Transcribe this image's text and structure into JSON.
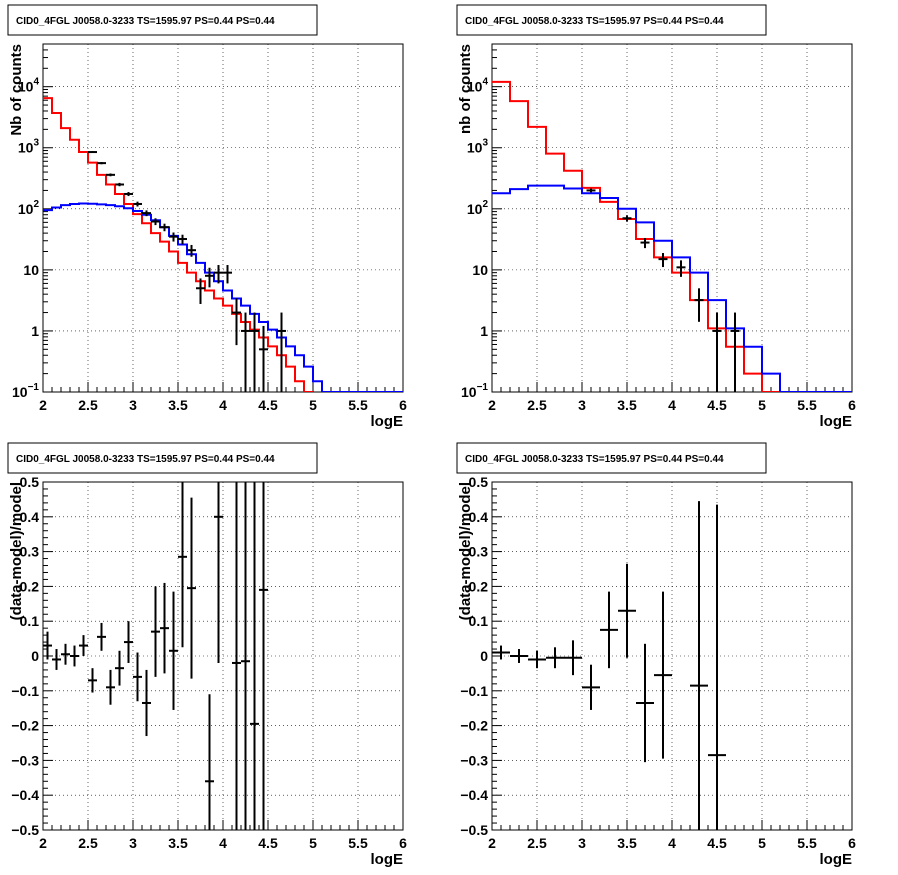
{
  "charts": [
    {
      "title": "CID0_4FGL J0058.0-3233 TS=1595.97 PS=0.44 PS=0.44",
      "type": "histogram",
      "xlabel": "logE",
      "ylabel": "Nb of counts",
      "xlim": [
        2,
        6
      ],
      "ylim": [
        0.1,
        50000
      ],
      "log_y": true,
      "grid": true,
      "x_ticks": [
        "2",
        "2.5",
        "3",
        "3.5",
        "4",
        "4.5",
        "5",
        "5.5",
        "6"
      ],
      "y_ticks": [
        {
          "v": 0.1,
          "base": "10",
          "exp": "−1"
        },
        {
          "v": 1,
          "label": "1"
        },
        {
          "v": 10,
          "label": "10"
        },
        {
          "v": 100,
          "base": "10",
          "exp": "2"
        },
        {
          "v": 1000,
          "base": "10",
          "exp": "3"
        },
        {
          "v": 10000,
          "base": "10",
          "exp": "4"
        }
      ],
      "series": [
        {
          "color": "#ff0000",
          "bin_width": 0.1,
          "x_start": 2.0,
          "values": [
            6500,
            3700,
            2100,
            1350,
            850,
            570,
            360,
            250,
            175,
            120,
            82,
            58,
            40,
            29,
            20,
            13,
            9,
            6.5,
            4.6,
            3.4,
            2.6,
            1.9,
            1.4,
            1.05,
            0.78,
            0.56,
            0.4,
            0.26,
            0.15,
            0.1
          ]
        },
        {
          "color": "#0000ff",
          "bin_width": 0.1,
          "x_start": 2.0,
          "values": [
            95,
            105,
            115,
            120,
            122,
            121,
            118,
            115,
            110,
            102,
            92,
            80,
            65,
            50,
            36,
            26,
            18,
            13,
            9,
            6.5,
            4.6,
            3.4,
            2.6,
            1.9,
            1.4,
            1.05,
            0.78,
            0.56,
            0.4,
            0.26,
            0.15,
            0.1,
            0.1,
            0.1,
            0.1,
            0.1,
            0.1,
            0.1,
            0.1,
            0.1
          ]
        }
      ],
      "points": [
        {
          "x": 2.55,
          "y": 850
        },
        {
          "x": 2.65,
          "y": 560
        },
        {
          "x": 2.75,
          "y": 360
        },
        {
          "x": 2.85,
          "y": 250
        },
        {
          "x": 2.95,
          "y": 175
        },
        {
          "x": 3.05,
          "y": 120
        },
        {
          "x": 3.15,
          "y": 85
        },
        {
          "x": 3.25,
          "y": 62
        },
        {
          "x": 3.35,
          "y": 50
        },
        {
          "x": 3.45,
          "y": 35
        },
        {
          "x": 3.55,
          "y": 32
        },
        {
          "x": 3.65,
          "y": 21
        },
        {
          "x": 3.75,
          "y": 5
        },
        {
          "x": 3.85,
          "y": 8
        },
        {
          "x": 3.95,
          "y": 9
        },
        {
          "x": 4.05,
          "y": 9
        },
        {
          "x": 4.15,
          "y": 2
        },
        {
          "x": 4.25,
          "y": 1
        },
        {
          "x": 4.35,
          "y": 1
        },
        {
          "x": 4.45,
          "y": 0.5
        },
        {
          "x": 4.65,
          "y": 1
        }
      ]
    },
    {
      "title": "CID0_4FGL J0058.0-3233 TS=1595.97 PS=0.44 PS=0.44",
      "type": "histogram",
      "xlabel": "logE",
      "ylabel": "nb of counts",
      "xlim": [
        2,
        6
      ],
      "ylim": [
        0.1,
        50000
      ],
      "log_y": true,
      "grid": true,
      "x_ticks": [
        "2",
        "2.5",
        "3",
        "3.5",
        "4",
        "4.5",
        "5",
        "5.5",
        "6"
      ],
      "y_ticks": [
        {
          "v": 0.1,
          "base": "10",
          "exp": "−1"
        },
        {
          "v": 1,
          "label": "1"
        },
        {
          "v": 10,
          "label": "10"
        },
        {
          "v": 100,
          "base": "10",
          "exp": "2"
        },
        {
          "v": 1000,
          "base": "10",
          "exp": "3"
        },
        {
          "v": 10000,
          "base": "10",
          "exp": "4"
        }
      ],
      "series": [
        {
          "color": "#ff0000",
          "bin_width": 0.2,
          "x_start": 2.0,
          "values": [
            12000,
            5800,
            2200,
            800,
            420,
            220,
            130,
            68,
            32,
            16,
            9,
            3.2,
            1.1,
            0.55,
            0.2,
            0.1,
            0.1,
            0.1,
            0.1,
            0.1
          ]
        },
        {
          "color": "#0000ff",
          "bin_width": 0.2,
          "x_start": 2.0,
          "values": [
            180,
            210,
            240,
            240,
            215,
            180,
            150,
            100,
            60,
            30,
            16,
            9,
            3.2,
            1.1,
            0.55,
            0.2,
            0.1,
            0.1,
            0.1,
            0.1
          ]
        }
      ],
      "points": [
        {
          "x": 3.1,
          "y": 200
        },
        {
          "x": 3.5,
          "y": 70
        },
        {
          "x": 3.7,
          "y": 28
        },
        {
          "x": 3.9,
          "y": 15
        },
        {
          "x": 4.1,
          "y": 11
        },
        {
          "x": 4.3,
          "y": 3.2
        },
        {
          "x": 4.5,
          "y": 1
        },
        {
          "x": 4.7,
          "y": 1
        }
      ]
    },
    {
      "title": "CID0_4FGL J0058.0-3233 TS=1595.97 PS=0.44 PS=0.44",
      "type": "scatter",
      "xlabel": "logE",
      "ylabel": "(data-model)/model",
      "xlim": [
        2,
        6
      ],
      "ylim": [
        -0.5,
        0.5
      ],
      "log_y": false,
      "grid": true,
      "x_ticks": [
        "2",
        "2.5",
        "3",
        "3.5",
        "4",
        "4.5",
        "5",
        "5.5",
        "6"
      ],
      "y_ticks": [
        {
          "v": -0.5,
          "label": "−0.5"
        },
        {
          "v": -0.4,
          "label": "−0.4"
        },
        {
          "v": -0.3,
          "label": "−0.3"
        },
        {
          "v": -0.2,
          "label": "−0.2"
        },
        {
          "v": -0.1,
          "label": "−0.1"
        },
        {
          "v": 0,
          "label": "0"
        },
        {
          "v": 0.1,
          "label": "0.1"
        },
        {
          "v": 0.2,
          "label": "0.2"
        },
        {
          "v": 0.3,
          "label": "0.3"
        },
        {
          "v": 0.4,
          "label": "0.4"
        },
        {
          "v": 0.5,
          "label": "0.5"
        }
      ],
      "points": [
        {
          "x": 2.05,
          "y": 0.03,
          "err": 0.04,
          "xerr": 0.05
        },
        {
          "x": 2.15,
          "y": -0.01,
          "err": 0.03,
          "xerr": 0.05
        },
        {
          "x": 2.25,
          "y": 0.005,
          "err": 0.03,
          "xerr": 0.05
        },
        {
          "x": 2.35,
          "y": 0.0,
          "err": 0.03,
          "xerr": 0.05
        },
        {
          "x": 2.45,
          "y": 0.03,
          "err": 0.03,
          "xerr": 0.05
        },
        {
          "x": 2.55,
          "y": -0.07,
          "err": 0.035,
          "xerr": 0.05
        },
        {
          "x": 2.65,
          "y": 0.055,
          "err": 0.04,
          "xerr": 0.05
        },
        {
          "x": 2.75,
          "y": -0.09,
          "err": 0.05,
          "xerr": 0.05
        },
        {
          "x": 2.85,
          "y": -0.035,
          "err": 0.05,
          "xerr": 0.05
        },
        {
          "x": 2.95,
          "y": 0.04,
          "err": 0.06,
          "xerr": 0.05
        },
        {
          "x": 3.05,
          "y": -0.06,
          "err": 0.07,
          "xerr": 0.05
        },
        {
          "x": 3.15,
          "y": -0.135,
          "err": 0.095,
          "xerr": 0.05
        },
        {
          "x": 3.25,
          "y": 0.07,
          "err": 0.13,
          "xerr": 0.05
        },
        {
          "x": 3.35,
          "y": 0.08,
          "err": 0.13,
          "xerr": 0.05
        },
        {
          "x": 3.45,
          "y": 0.015,
          "err": 0.17,
          "xerr": 0.05
        },
        {
          "x": 3.55,
          "y": 0.285,
          "err": 0.26,
          "xerr": 0.05
        },
        {
          "x": 3.65,
          "y": 0.195,
          "err": 0.26,
          "xerr": 0.05
        },
        {
          "x": 3.85,
          "y": -0.36,
          "err": 0.25,
          "xerr": 0.05
        },
        {
          "x": 3.95,
          "y": 0.4,
          "err": 0.42,
          "xerr": 0.05
        },
        {
          "x": 4.15,
          "y": -0.02,
          "err": 1.2,
          "xerr": 0.05
        },
        {
          "x": 4.25,
          "y": -0.015,
          "err": 1.2,
          "xerr": 0.05
        },
        {
          "x": 4.35,
          "y": -0.195,
          "err": 1.2,
          "xerr": 0.05
        },
        {
          "x": 4.45,
          "y": 0.19,
          "err": 1.2,
          "xerr": 0.05
        }
      ]
    },
    {
      "title": "CID0_4FGL J0058.0-3233 TS=1595.97 PS=0.44 PS=0.44",
      "type": "scatter",
      "xlabel": "logE",
      "ylabel": "(data-model)/model",
      "xlim": [
        2,
        6
      ],
      "ylim": [
        -0.5,
        0.5
      ],
      "log_y": false,
      "grid": true,
      "x_ticks": [
        "2",
        "2.5",
        "3",
        "3.5",
        "4",
        "4.5",
        "5",
        "5.5",
        "6"
      ],
      "y_ticks": [
        {
          "v": -0.5,
          "label": "−0.5"
        },
        {
          "v": -0.4,
          "label": "−0.4"
        },
        {
          "v": -0.3,
          "label": "−0.3"
        },
        {
          "v": -0.2,
          "label": "−0.2"
        },
        {
          "v": -0.1,
          "label": "−0.1"
        },
        {
          "v": 0,
          "label": "0"
        },
        {
          "v": 0.1,
          "label": "0.1"
        },
        {
          "v": 0.2,
          "label": "0.2"
        },
        {
          "v": 0.3,
          "label": "0.3"
        },
        {
          "v": 0.4,
          "label": "0.4"
        },
        {
          "v": 0.5,
          "label": "0.5"
        }
      ],
      "points": [
        {
          "x": 2.1,
          "y": 0.01,
          "err": 0.02,
          "xerr": 0.1
        },
        {
          "x": 2.3,
          "y": 0.0,
          "err": 0.02,
          "xerr": 0.1
        },
        {
          "x": 2.5,
          "y": -0.01,
          "err": 0.025,
          "xerr": 0.1
        },
        {
          "x": 2.7,
          "y": -0.005,
          "err": 0.03,
          "xerr": 0.1
        },
        {
          "x": 2.9,
          "y": -0.005,
          "err": 0.05,
          "xerr": 0.1
        },
        {
          "x": 3.1,
          "y": -0.09,
          "err": 0.065,
          "xerr": 0.1
        },
        {
          "x": 3.3,
          "y": 0.075,
          "err": 0.11,
          "xerr": 0.1
        },
        {
          "x": 3.5,
          "y": 0.13,
          "err": 0.135,
          "xerr": 0.1
        },
        {
          "x": 3.7,
          "y": -0.135,
          "err": 0.17,
          "xerr": 0.1
        },
        {
          "x": 3.9,
          "y": -0.055,
          "err": 0.24,
          "xerr": 0.1
        },
        {
          "x": 4.3,
          "y": -0.085,
          "err": 0.53,
          "xerr": 0.1
        },
        {
          "x": 4.5,
          "y": -0.285,
          "err": 0.72,
          "xerr": 0.1
        }
      ]
    }
  ],
  "chart_data": [
    {
      "type": "line",
      "title": "CID0_4FGL J0058.0-3233 TS=1595.97 PS=0.44 PS=0.44",
      "xlabel": "logE",
      "ylabel": "Nb of counts",
      "xlim": [
        2,
        6
      ],
      "ylim": [
        0.1,
        50000
      ],
      "yscale": "log",
      "grid": true,
      "note": "red and blue step histograms with black data points"
    },
    {
      "type": "line",
      "title": "CID0_4FGL J0058.0-3233 TS=1595.97 PS=0.44 PS=0.44",
      "xlabel": "logE",
      "ylabel": "nb of counts",
      "xlim": [
        2,
        6
      ],
      "ylim": [
        0.1,
        50000
      ],
      "yscale": "log",
      "grid": true
    },
    {
      "type": "scatter",
      "title": "CID0_4FGL J0058.0-3233 TS=1595.97 PS=0.44 PS=0.44",
      "xlabel": "logE",
      "ylabel": "(data-model)/model",
      "xlim": [
        2,
        6
      ],
      "ylim": [
        -0.5,
        0.5
      ],
      "grid": true
    },
    {
      "type": "scatter",
      "title": "CID0_4FGL J0058.0-3233 TS=1595.97 PS=0.44 PS=0.44",
      "xlabel": "logE",
      "ylabel": "(data-model)/model",
      "xlim": [
        2,
        6
      ],
      "ylim": [
        -0.5,
        0.5
      ],
      "grid": true
    }
  ]
}
